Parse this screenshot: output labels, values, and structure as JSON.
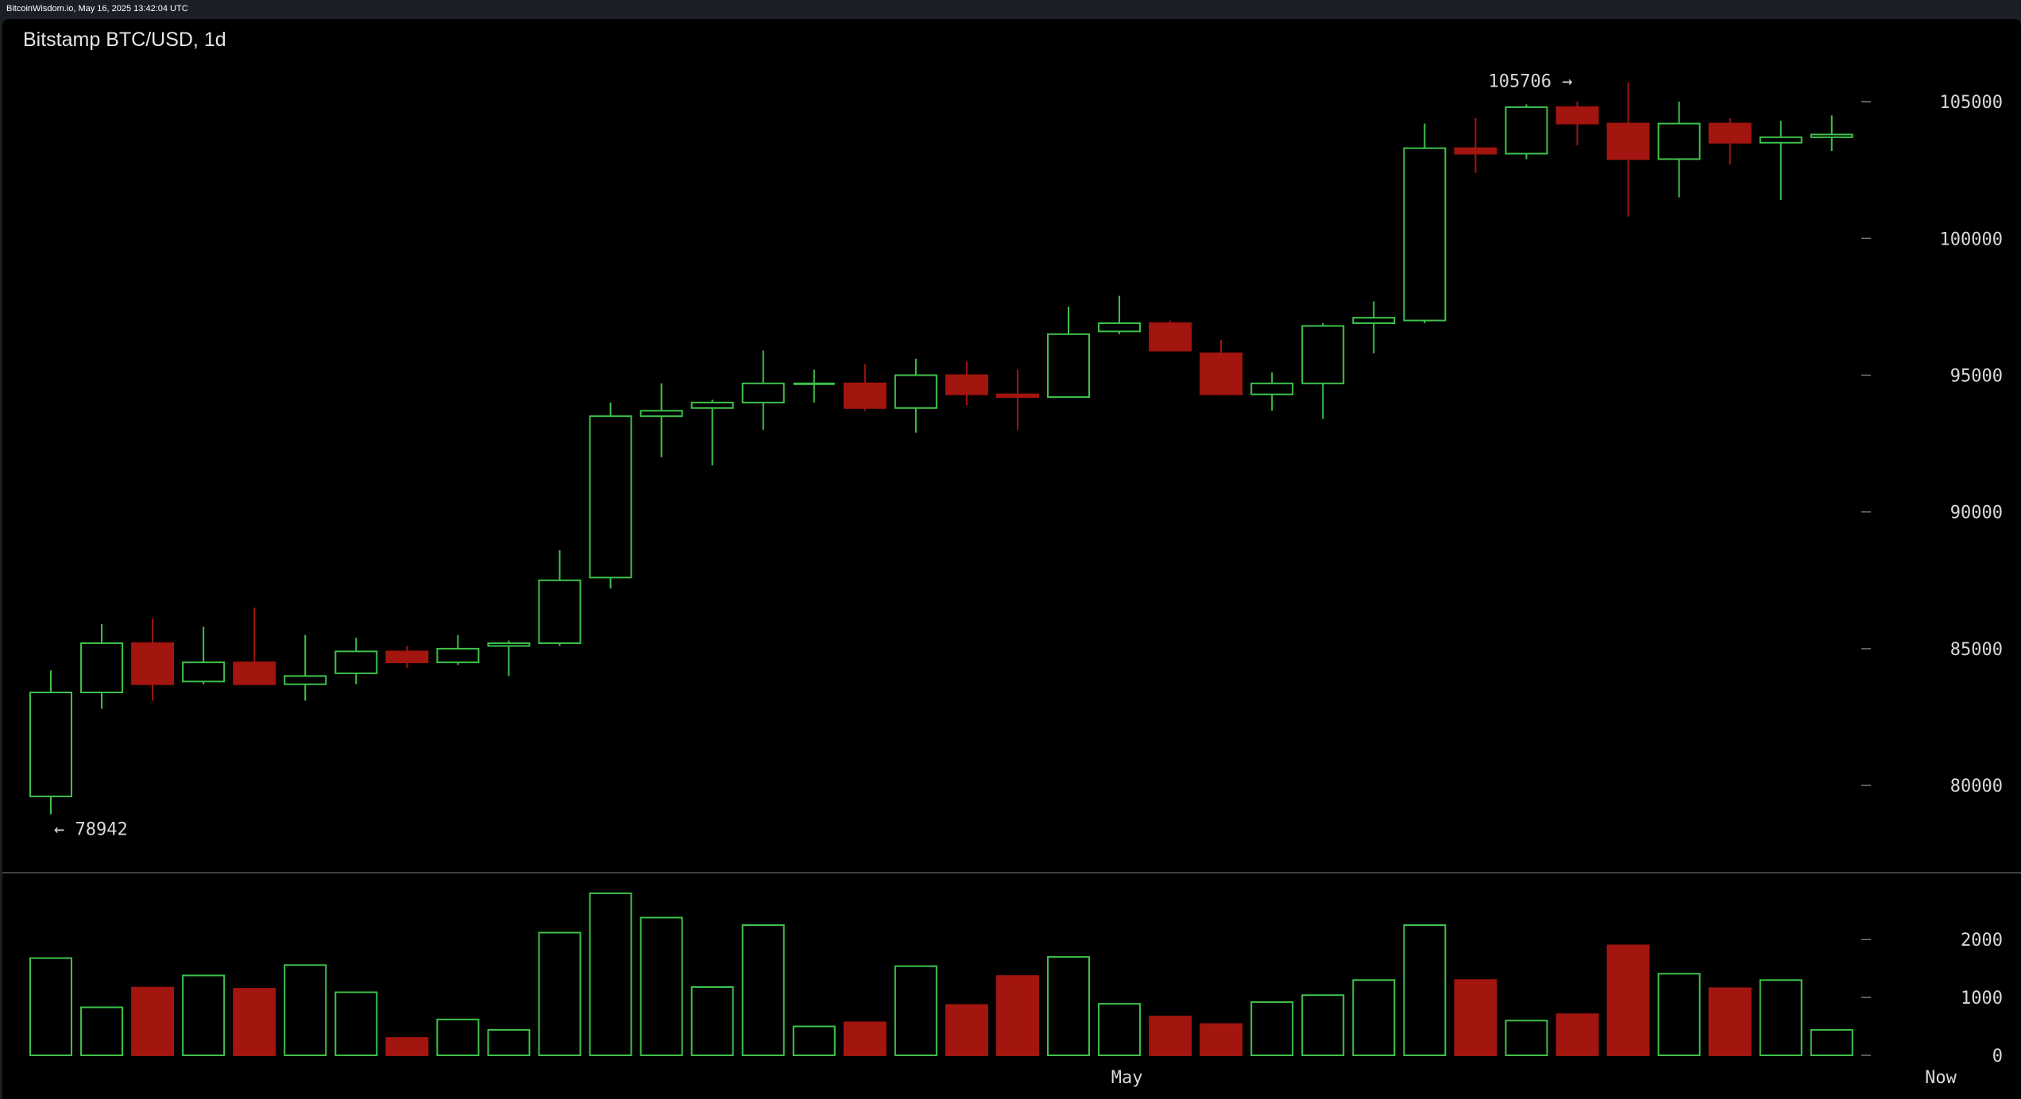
{
  "topbar": {
    "text": "BitcoinWisdom.io, May 16, 2025 13:42:04 UTC"
  },
  "colors": {
    "background": "#000000",
    "frame": "#1c1e26",
    "up": "#3ec24a",
    "down": "#a3150f",
    "text": "#d8d8d8",
    "separator": "#555555"
  },
  "chart_data": {
    "type": "candlestick",
    "title": "Bitstamp BTC/USD, 1d",
    "price_axis": {
      "ticks": [
        80000,
        85000,
        90000,
        95000,
        100000,
        105000
      ],
      "ylim": [
        77100,
        107150
      ],
      "side": "right"
    },
    "volume_axis": {
      "ticks": [
        0,
        1000,
        2000
      ],
      "ylim": [
        0,
        2950
      ],
      "side": "right"
    },
    "x_labels": [
      "May",
      "Now"
    ],
    "annotations": [
      {
        "text": "105706 →",
        "value": 105706,
        "index": 30,
        "side": "left"
      },
      {
        "text": "← 78942",
        "value": 78942,
        "index": 0,
        "side": "right"
      }
    ],
    "candles": [
      {
        "open": 79600,
        "high": 84200,
        "low": 78942,
        "close": 83400,
        "volume": 1680
      },
      {
        "open": 83400,
        "high": 85900,
        "low": 82800,
        "close": 85200,
        "volume": 830
      },
      {
        "open": 85200,
        "high": 86100,
        "low": 83100,
        "close": 83700,
        "volume": 1170
      },
      {
        "open": 83800,
        "high": 85800,
        "low": 83700,
        "close": 84500,
        "volume": 1380
      },
      {
        "open": 84500,
        "high": 86500,
        "low": 83700,
        "close": 83700,
        "volume": 1150
      },
      {
        "open": 83700,
        "high": 85500,
        "low": 83100,
        "close": 84000,
        "volume": 1560
      },
      {
        "open": 84100,
        "high": 85400,
        "low": 83700,
        "close": 84900,
        "volume": 1090
      },
      {
        "open": 84900,
        "high": 85100,
        "low": 84300,
        "close": 84500,
        "volume": 300
      },
      {
        "open": 84500,
        "high": 85500,
        "low": 84400,
        "close": 85000,
        "volume": 620
      },
      {
        "open": 85100,
        "high": 85300,
        "low": 84000,
        "close": 85200,
        "volume": 440
      },
      {
        "open": 85200,
        "high": 88600,
        "low": 85100,
        "close": 87500,
        "volume": 2120
      },
      {
        "open": 87600,
        "high": 94000,
        "low": 87200,
        "close": 93500,
        "volume": 2800
      },
      {
        "open": 93500,
        "high": 94700,
        "low": 92000,
        "close": 93700,
        "volume": 2380
      },
      {
        "open": 93800,
        "high": 94100,
        "low": 91700,
        "close": 94000,
        "volume": 1180
      },
      {
        "open": 94000,
        "high": 95900,
        "low": 93000,
        "close": 94700,
        "volume": 2250
      },
      {
        "open": 94700,
        "high": 95200,
        "low": 94000,
        "close": 94700,
        "volume": 500
      },
      {
        "open": 94700,
        "high": 95400,
        "low": 93700,
        "close": 93800,
        "volume": 570
      },
      {
        "open": 93800,
        "high": 95600,
        "low": 92900,
        "close": 95000,
        "volume": 1540
      },
      {
        "open": 95000,
        "high": 95500,
        "low": 93900,
        "close": 94300,
        "volume": 870
      },
      {
        "open": 94300,
        "high": 95200,
        "low": 93000,
        "close": 94200,
        "volume": 1370
      },
      {
        "open": 94200,
        "high": 97500,
        "low": 94200,
        "close": 96500,
        "volume": 1700
      },
      {
        "open": 96600,
        "high": 97900,
        "low": 96500,
        "close": 96900,
        "volume": 890
      },
      {
        "open": 96900,
        "high": 97000,
        "low": 95900,
        "close": 95900,
        "volume": 670
      },
      {
        "open": 95800,
        "high": 96300,
        "low": 94300,
        "close": 94300,
        "volume": 540
      },
      {
        "open": 94300,
        "high": 95100,
        "low": 93700,
        "close": 94700,
        "volume": 920
      },
      {
        "open": 94700,
        "high": 96900,
        "low": 93400,
        "close": 96800,
        "volume": 1040
      },
      {
        "open": 96900,
        "high": 97700,
        "low": 95800,
        "close": 97100,
        "volume": 1300
      },
      {
        "open": 97000,
        "high": 104200,
        "low": 96900,
        "close": 103300,
        "volume": 2250
      },
      {
        "open": 103300,
        "high": 104400,
        "low": 102400,
        "close": 103100,
        "volume": 1300
      },
      {
        "open": 103100,
        "high": 104900,
        "low": 102900,
        "close": 104800,
        "volume": 600
      },
      {
        "open": 104800,
        "high": 105000,
        "low": 103400,
        "close": 104200,
        "volume": 710
      },
      {
        "open": 104200,
        "high": 105706,
        "low": 100800,
        "close": 102900,
        "volume": 1900
      },
      {
        "open": 102900,
        "high": 105000,
        "low": 101500,
        "close": 104200,
        "volume": 1410
      },
      {
        "open": 104200,
        "high": 104400,
        "low": 102700,
        "close": 103500,
        "volume": 1160
      },
      {
        "open": 103500,
        "high": 104300,
        "low": 101400,
        "close": 103700,
        "volume": 1300
      },
      {
        "open": 103700,
        "high": 104500,
        "low": 103200,
        "close": 103800,
        "volume": 440
      }
    ]
  }
}
